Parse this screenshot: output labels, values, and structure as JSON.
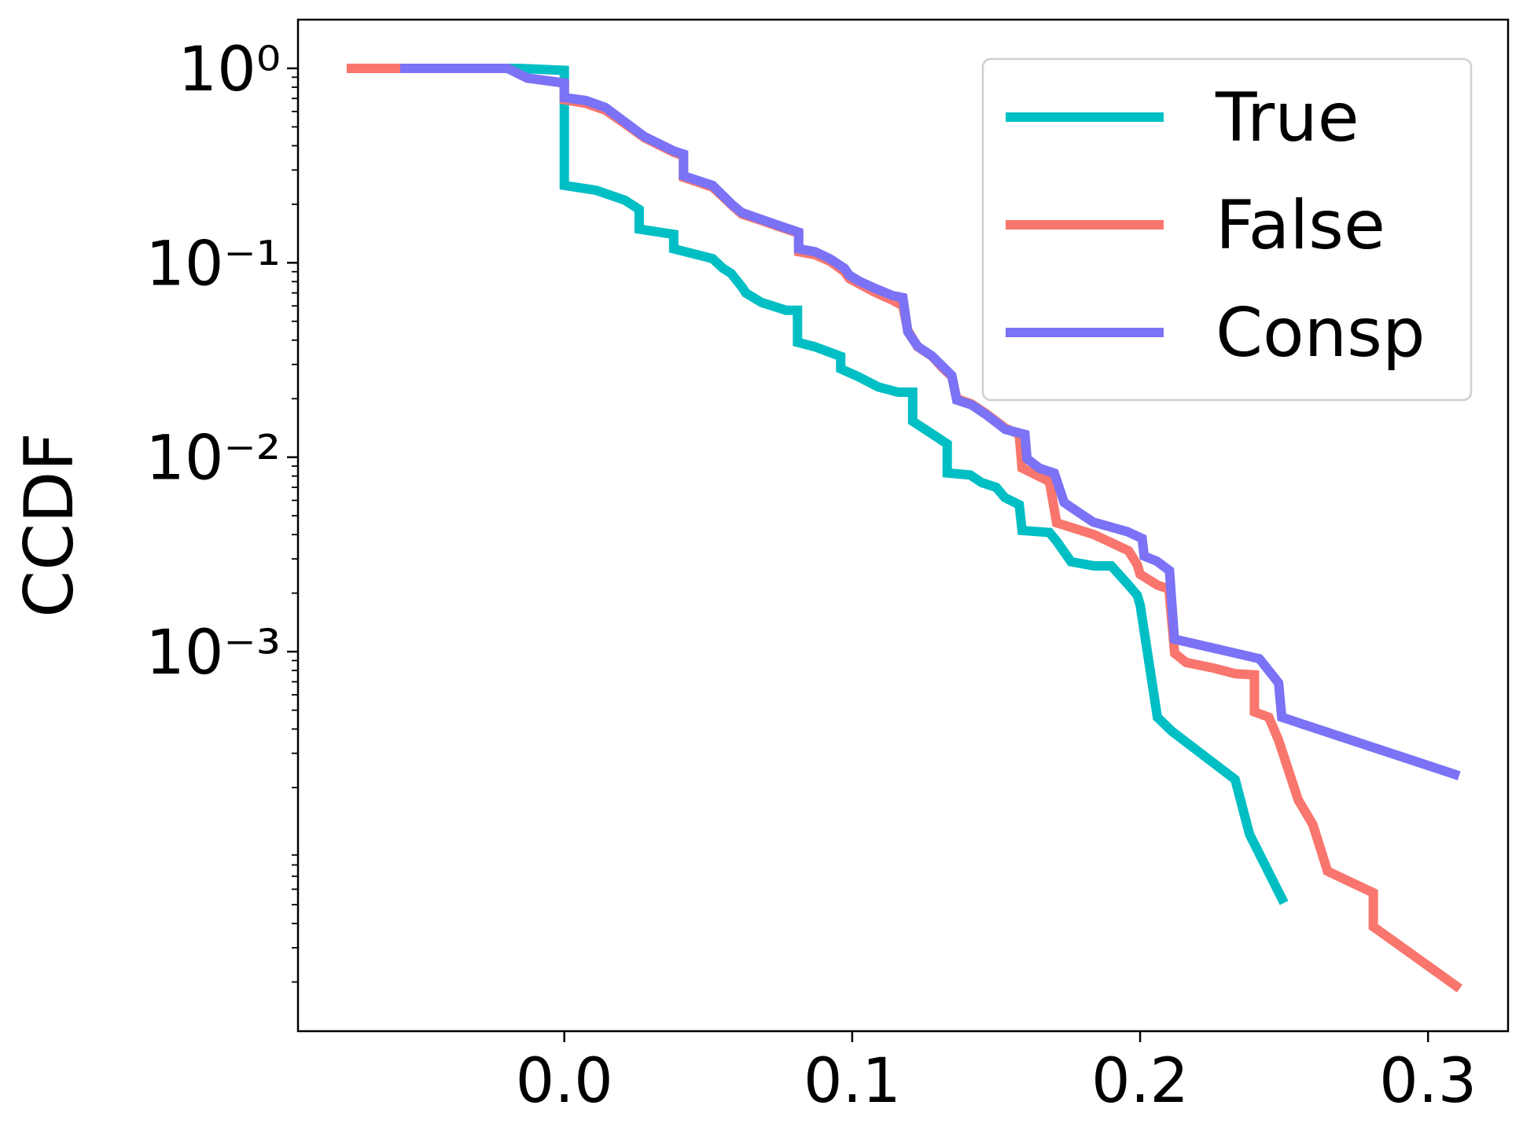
{
  "chart_data": {
    "type": "line",
    "y_label": "CCDF",
    "log_y": true,
    "legend_position": "upper right",
    "xlim": [
      -0.0925,
      0.3278
    ],
    "ylim": [
      1.117e-05,
      1.78
    ],
    "xticks": [
      {
        "value": 0,
        "label": "0.0"
      },
      0.1,
      0.2,
      0.3
    ],
    "yticks": [
      {
        "value": 0.001,
        "label": "10⁻³"
      },
      {
        "value": 0.01,
        "label": "10⁻²"
      },
      {
        "value": 0.1,
        "label": "10⁻¹"
      },
      {
        "value": 1,
        "label": "10⁰"
      }
    ],
    "yticks_minor": [
      2e-05,
      3e-05,
      4e-05,
      5e-05,
      6e-05,
      7e-05,
      8e-05,
      9e-05,
      0.0002,
      0.0003,
      0.0004,
      0.0005,
      0.0006,
      0.0007,
      0.0008,
      0.0009,
      0.002,
      0.003,
      0.004,
      0.005,
      0.006,
      0.007,
      0.008,
      0.009,
      0.02,
      0.03,
      0.04,
      0.05,
      0.06,
      0.07,
      0.08,
      0.09,
      0.2,
      0.3,
      0.4,
      0.5,
      0.6,
      0.7,
      0.8,
      0.9
    ],
    "series": [
      {
        "name": "True",
        "color": "#00bfc4",
        "x": [
          -0.057,
          -0.016,
          0,
          0,
          0.011,
          0.021,
          0.026,
          0.026,
          0.038,
          0.038,
          0.0515,
          0.055,
          0.058,
          0.062,
          0.063,
          0.0685,
          0.077,
          0.081,
          0.081,
          0.087,
          0.096,
          0.096,
          0.102,
          0.109,
          0.116,
          0.121,
          0.121,
          0.128,
          0.133,
          0.133,
          0.141,
          0.145,
          0.15,
          0.153,
          0.158,
          0.159,
          0.1685,
          0.171,
          0.176,
          0.184,
          0.19,
          0.196,
          0.199,
          0.2,
          0.206,
          0.211,
          0.233,
          0.238,
          0.25
        ],
        "values": [
          1.0,
          1.0,
          0.977,
          0.25,
          0.236,
          0.21,
          0.188,
          0.149,
          0.14,
          0.118,
          0.105,
          0.094,
          0.088,
          0.074,
          0.07,
          0.0625,
          0.057,
          0.057,
          0.039,
          0.037,
          0.033,
          0.0285,
          0.026,
          0.023,
          0.0216,
          0.0216,
          0.0153,
          0.0131,
          0.0117,
          0.0083,
          0.0081,
          0.0074,
          0.007,
          0.0062,
          0.0057,
          0.0042,
          0.0041,
          0.0037,
          0.0029,
          0.00276,
          0.00276,
          0.0022,
          0.00195,
          0.00174,
          0.00046,
          0.00039,
          0.00022,
          0.000115,
          5.1e-05
        ]
      },
      {
        "name": "False",
        "color": "#f8766d",
        "x": [
          -0.0756,
          -0.0197,
          -0.0129,
          0,
          0,
          0.0075,
          0.0142,
          0.021,
          0.0278,
          0.038,
          0.0414,
          0.0414,
          0.0515,
          0.0549,
          0.0583,
          0.0617,
          0.0685,
          0.0753,
          0.0814,
          0.0814,
          0.0871,
          0.0922,
          0.0973,
          0.099,
          0.1024,
          0.1075,
          0.1142,
          0.1176,
          0.1193,
          0.1227,
          0.1278,
          0.1312,
          0.1346,
          0.1363,
          0.1414,
          0.1464,
          0.1532,
          0.158,
          0.159,
          0.1685,
          0.171,
          0.184,
          0.196,
          0.199,
          0.2,
          0.206,
          0.21,
          0.212,
          0.216,
          0.226,
          0.233,
          0.2397,
          0.2397,
          0.2447,
          0.2481,
          0.2549,
          0.26,
          0.2651,
          0.281,
          0.281,
          0.311
        ],
        "values": [
          1.0,
          1.0,
          0.891,
          0.84,
          0.69,
          0.66,
          0.61,
          0.52,
          0.44,
          0.37,
          0.355,
          0.275,
          0.245,
          0.22,
          0.197,
          0.178,
          0.165,
          0.152,
          0.142,
          0.114,
          0.11,
          0.102,
          0.09,
          0.083,
          0.078,
          0.071,
          0.064,
          0.06,
          0.045,
          0.037,
          0.033,
          0.029,
          0.026,
          0.02,
          0.0188,
          0.0168,
          0.0141,
          0.0131,
          0.0088,
          0.0075,
          0.0046,
          0.004,
          0.0033,
          0.0028,
          0.0025,
          0.0022,
          0.0021,
          0.00098,
          0.00088,
          0.00082,
          0.00077,
          0.00076,
          0.00049,
          0.00046,
          0.00035,
          0.000173,
          0.000129,
          7.43e-05,
          5.75e-05,
          3.85e-05,
          1.85e-05
        ]
      },
      {
        "name": "Consp",
        "color": "#7b72f5",
        "x": [
          -0.057,
          -0.0197,
          -0.0129,
          0,
          0,
          0.0075,
          0.0142,
          0.021,
          0.0278,
          0.038,
          0.0414,
          0.0414,
          0.0515,
          0.0549,
          0.0583,
          0.0617,
          0.0685,
          0.0753,
          0.0814,
          0.0814,
          0.0871,
          0.0922,
          0.0973,
          0.099,
          0.1024,
          0.1075,
          0.1142,
          0.1176,
          0.1193,
          0.1227,
          0.1278,
          0.1312,
          0.1346,
          0.1363,
          0.1414,
          0.1464,
          0.1532,
          0.16,
          0.1607,
          0.1651,
          0.1702,
          0.1736,
          0.1786,
          0.1837,
          0.1956,
          0.2007,
          0.2014,
          0.2058,
          0.2102,
          0.2119,
          0.2414,
          0.2481,
          0.2492,
          0.3108
        ],
        "values": [
          1.0,
          1.0,
          0.891,
          0.84,
          0.707,
          0.683,
          0.63,
          0.53,
          0.446,
          0.376,
          0.362,
          0.28,
          0.25,
          0.223,
          0.199,
          0.181,
          0.167,
          0.154,
          0.1436,
          0.118,
          0.114,
          0.105,
          0.0936,
          0.0863,
          0.0805,
          0.0743,
          0.0677,
          0.0662,
          0.0442,
          0.0372,
          0.0331,
          0.0295,
          0.0263,
          0.0197,
          0.0186,
          0.0166,
          0.0139,
          0.0131,
          0.00984,
          0.00877,
          0.00828,
          0.00585,
          0.00521,
          0.00464,
          0.00414,
          0.00382,
          0.0031,
          0.00292,
          0.00261,
          0.00116,
          0.00092,
          0.00069,
          0.00046,
          0.00023
        ]
      }
    ]
  }
}
